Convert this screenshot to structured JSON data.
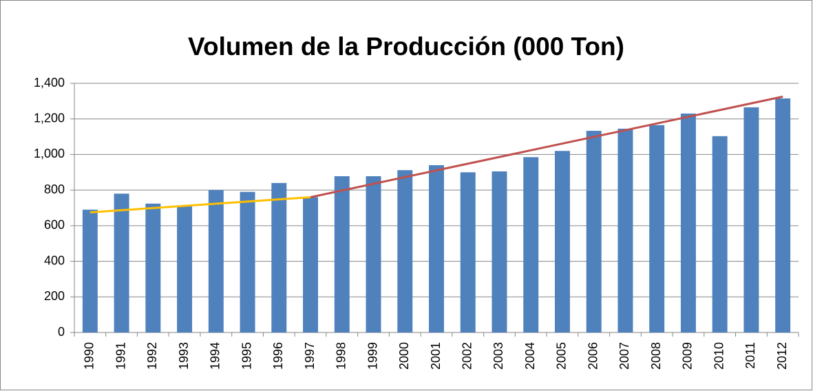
{
  "chart_data": {
    "type": "bar",
    "title": "Volumen de la Producción (000 Ton)",
    "categories": [
      "1990",
      "1991",
      "1992",
      "1993",
      "1994",
      "1995",
      "1996",
      "1997",
      "1998",
      "1999",
      "2000",
      "2001",
      "2002",
      "2003",
      "2004",
      "2005",
      "2006",
      "2007",
      "2008",
      "2009",
      "2010",
      "2011",
      "2012"
    ],
    "values": [
      690,
      780,
      724,
      710,
      800,
      790,
      840,
      760,
      878,
      878,
      912,
      940,
      900,
      905,
      985,
      1020,
      1133,
      1145,
      1165,
      1230,
      1103,
      1265,
      1315
    ],
    "color": "#4f81bd",
    "lines": [
      {
        "color": "#ffc000",
        "values": [
          675,
          null,
          null,
          null,
          null,
          null,
          null,
          760,
          null,
          null,
          null,
          null,
          null,
          null,
          null,
          null,
          null,
          null,
          null,
          null,
          null,
          null,
          null
        ]
      },
      {
        "color": "#c0504d",
        "values": [
          null,
          null,
          null,
          null,
          null,
          null,
          null,
          760,
          null,
          null,
          null,
          null,
          null,
          null,
          null,
          null,
          null,
          null,
          null,
          null,
          null,
          null,
          1325
        ]
      }
    ],
    "ylim": [
      0,
      1400
    ],
    "yticks": [
      0,
      200,
      400,
      600,
      800,
      {
        "value": 1000,
        "label": "1,000"
      },
      {
        "value": 1200,
        "label": "1,200"
      },
      {
        "value": 1400,
        "label": "1,400"
      }
    ],
    "grid": true
  }
}
